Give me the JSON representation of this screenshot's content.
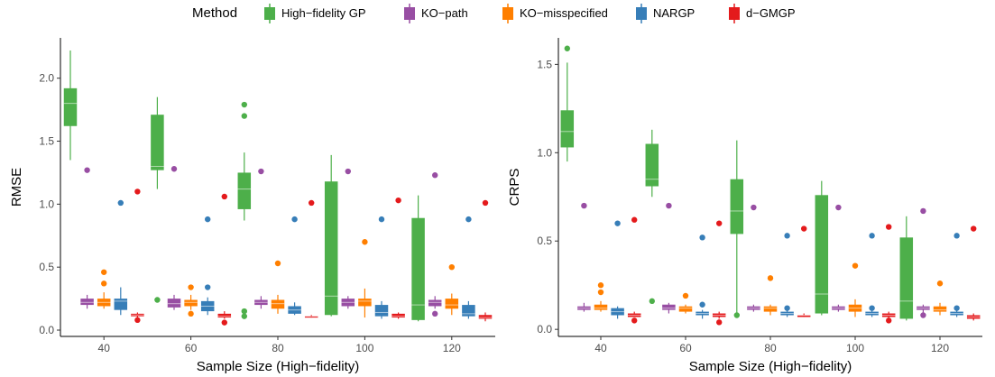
{
  "legend": {
    "title": "Method",
    "items": [
      {
        "label": "High−fidelity GP",
        "color": "#4DAF4A"
      },
      {
        "label": "KO−path",
        "color": "#984EA3"
      },
      {
        "label": "KO−misspecified",
        "color": "#FF7F00"
      },
      {
        "label": "NARGP",
        "color": "#377EB8"
      },
      {
        "label": "d−GMGP",
        "color": "#E41A1C"
      }
    ]
  },
  "chart_data": [
    {
      "type": "box",
      "xlabel": "Sample Size (High−fidelity)",
      "ylabel": "RMSE",
      "categories": [
        "40",
        "60",
        "80",
        "100",
        "120"
      ],
      "yticks": [
        "0.0",
        "0.5",
        "1.0",
        "1.5",
        "2.0"
      ],
      "ylim": [
        -0.05,
        2.32
      ],
      "grid": false,
      "series": [
        {
          "name": "High−fidelity GP",
          "color": "#4DAF4A",
          "boxes": [
            {
              "min": 1.35,
              "q1": 1.62,
              "median": 1.8,
              "q3": 1.92,
              "max": 2.22,
              "outliers": []
            },
            {
              "min": 1.12,
              "q1": 1.27,
              "median": 1.3,
              "q3": 1.71,
              "max": 1.85,
              "outliers": [
                0.24
              ]
            },
            {
              "min": 0.87,
              "q1": 0.96,
              "median": 1.12,
              "q3": 1.25,
              "max": 1.41,
              "outliers": [
                1.79,
                1.7,
                0.15,
                0.11
              ]
            },
            {
              "min": 0.11,
              "q1": 0.12,
              "median": 0.27,
              "q3": 1.18,
              "max": 1.39,
              "outliers": []
            },
            {
              "min": 0.07,
              "q1": 0.08,
              "median": 0.2,
              "q3": 0.89,
              "max": 1.07,
              "outliers": []
            }
          ]
        },
        {
          "name": "KO−path",
          "color": "#984EA3",
          "boxes": [
            {
              "min": 0.17,
              "q1": 0.2,
              "median": 0.22,
              "q3": 0.25,
              "max": 0.28,
              "outliers": [
                1.27
              ]
            },
            {
              "min": 0.16,
              "q1": 0.18,
              "median": 0.21,
              "q3": 0.25,
              "max": 0.28,
              "outliers": [
                1.28
              ]
            },
            {
              "min": 0.17,
              "q1": 0.2,
              "median": 0.22,
              "q3": 0.24,
              "max": 0.27,
              "outliers": [
                1.26
              ]
            },
            {
              "min": 0.17,
              "q1": 0.19,
              "median": 0.22,
              "q3": 0.25,
              "max": 0.27,
              "outliers": [
                1.26
              ]
            },
            {
              "min": 0.17,
              "q1": 0.19,
              "median": 0.22,
              "q3": 0.24,
              "max": 0.27,
              "outliers": [
                1.23,
                0.13
              ]
            }
          ]
        },
        {
          "name": "KO−misspecified",
          "color": "#FF7F00",
          "boxes": [
            {
              "min": 0.17,
              "q1": 0.19,
              "median": 0.22,
              "q3": 0.25,
              "max": 0.3,
              "outliers": [
                0.46,
                0.37
              ]
            },
            {
              "min": 0.16,
              "q1": 0.19,
              "median": 0.22,
              "q3": 0.24,
              "max": 0.28,
              "outliers": [
                0.34,
                0.13
              ]
            },
            {
              "min": 0.13,
              "q1": 0.17,
              "median": 0.21,
              "q3": 0.24,
              "max": 0.28,
              "outliers": [
                0.53
              ]
            },
            {
              "min": 0.1,
              "q1": 0.19,
              "median": 0.23,
              "q3": 0.25,
              "max": 0.33,
              "outliers": [
                0.7
              ]
            },
            {
              "min": 0.12,
              "q1": 0.17,
              "median": 0.2,
              "q3": 0.25,
              "max": 0.29,
              "outliers": [
                0.5
              ]
            }
          ]
        },
        {
          "name": "NARGP",
          "color": "#377EB8",
          "boxes": [
            {
              "min": 0.12,
              "q1": 0.16,
              "median": 0.23,
              "q3": 0.25,
              "max": 0.34,
              "outliers": [
                1.01
              ]
            },
            {
              "min": 0.12,
              "q1": 0.15,
              "median": 0.19,
              "q3": 0.23,
              "max": 0.26,
              "outliers": [
                0.88,
                0.34
              ]
            },
            {
              "min": 0.12,
              "q1": 0.13,
              "median": 0.16,
              "q3": 0.19,
              "max": 0.22,
              "outliers": [
                0.88
              ]
            },
            {
              "min": 0.09,
              "q1": 0.11,
              "median": 0.14,
              "q3": 0.2,
              "max": 0.23,
              "outliers": [
                0.88
              ]
            },
            {
              "min": 0.09,
              "q1": 0.11,
              "median": 0.13,
              "q3": 0.2,
              "max": 0.23,
              "outliers": [
                0.88
              ]
            }
          ]
        },
        {
          "name": "d−GMGP",
          "color": "#E41A1C",
          "boxes": [
            {
              "min": 0.1,
              "q1": 0.11,
              "median": 0.12,
              "q3": 0.13,
              "max": 0.14,
              "outliers": [
                1.1,
                0.08
              ]
            },
            {
              "min": 0.09,
              "q1": 0.1,
              "median": 0.11,
              "q3": 0.13,
              "max": 0.15,
              "outliers": [
                1.06,
                0.06
              ]
            },
            {
              "min": 0.1,
              "q1": 0.1,
              "median": 0.11,
              "q3": 0.11,
              "max": 0.12,
              "outliers": [
                1.01
              ]
            },
            {
              "min": 0.09,
              "q1": 0.1,
              "median": 0.11,
              "q3": 0.13,
              "max": 0.14,
              "outliers": [
                1.03
              ]
            },
            {
              "min": 0.07,
              "q1": 0.09,
              "median": 0.1,
              "q3": 0.12,
              "max": 0.14,
              "outliers": [
                1.01
              ]
            }
          ]
        }
      ]
    },
    {
      "type": "box",
      "xlabel": "Sample Size (High−fidelity)",
      "ylabel": "CRPS",
      "categories": [
        "40",
        "60",
        "80",
        "100",
        "120"
      ],
      "yticks": [
        "0.0",
        "0.5",
        "1.0",
        "1.5"
      ],
      "ylim": [
        -0.04,
        1.65
      ],
      "grid": false,
      "series": [
        {
          "name": "High−fidelity GP",
          "color": "#4DAF4A",
          "boxes": [
            {
              "min": 0.95,
              "q1": 1.03,
              "median": 1.12,
              "q3": 1.24,
              "max": 1.51,
              "outliers": [
                1.59
              ]
            },
            {
              "min": 0.75,
              "q1": 0.81,
              "median": 0.85,
              "q3": 1.05,
              "max": 1.13,
              "outliers": [
                0.16
              ]
            },
            {
              "min": 0.08,
              "q1": 0.54,
              "median": 0.67,
              "q3": 0.85,
              "max": 1.07,
              "outliers": [
                0.08
              ]
            },
            {
              "min": 0.08,
              "q1": 0.09,
              "median": 0.2,
              "q3": 0.76,
              "max": 0.84,
              "outliers": []
            },
            {
              "min": 0.05,
              "q1": 0.06,
              "median": 0.16,
              "q3": 0.52,
              "max": 0.64,
              "outliers": []
            }
          ]
        },
        {
          "name": "KO−path",
          "color": "#984EA3",
          "boxes": [
            {
              "min": 0.1,
              "q1": 0.11,
              "median": 0.12,
              "q3": 0.13,
              "max": 0.15,
              "outliers": [
                0.7
              ]
            },
            {
              "min": 0.09,
              "q1": 0.11,
              "median": 0.12,
              "q3": 0.14,
              "max": 0.15,
              "outliers": [
                0.7
              ]
            },
            {
              "min": 0.1,
              "q1": 0.11,
              "median": 0.12,
              "q3": 0.13,
              "max": 0.14,
              "outliers": [
                0.69
              ]
            },
            {
              "min": 0.1,
              "q1": 0.11,
              "median": 0.12,
              "q3": 0.13,
              "max": 0.14,
              "outliers": [
                0.69
              ]
            },
            {
              "min": 0.09,
              "q1": 0.11,
              "median": 0.12,
              "q3": 0.13,
              "max": 0.14,
              "outliers": [
                0.67,
                0.08
              ]
            }
          ]
        },
        {
          "name": "KO−misspecified",
          "color": "#FF7F00",
          "boxes": [
            {
              "min": 0.1,
              "q1": 0.11,
              "median": 0.12,
              "q3": 0.14,
              "max": 0.16,
              "outliers": [
                0.25,
                0.21
              ]
            },
            {
              "min": 0.09,
              "q1": 0.1,
              "median": 0.12,
              "q3": 0.13,
              "max": 0.14,
              "outliers": [
                0.19
              ]
            },
            {
              "min": 0.08,
              "q1": 0.1,
              "median": 0.12,
              "q3": 0.13,
              "max": 0.14,
              "outliers": [
                0.29
              ]
            },
            {
              "min": 0.07,
              "q1": 0.1,
              "median": 0.12,
              "q3": 0.14,
              "max": 0.17,
              "outliers": [
                0.36
              ]
            },
            {
              "min": 0.08,
              "q1": 0.1,
              "median": 0.11,
              "q3": 0.13,
              "max": 0.15,
              "outliers": [
                0.26
              ]
            }
          ]
        },
        {
          "name": "NARGP",
          "color": "#377EB8",
          "boxes": [
            {
              "min": 0.06,
              "q1": 0.08,
              "median": 0.1,
              "q3": 0.12,
              "max": 0.13,
              "outliers": [
                0.6
              ]
            },
            {
              "min": 0.06,
              "q1": 0.08,
              "median": 0.09,
              "q3": 0.1,
              "max": 0.11,
              "outliers": [
                0.52,
                0.14
              ]
            },
            {
              "min": 0.07,
              "q1": 0.08,
              "median": 0.09,
              "q3": 0.1,
              "max": 0.11,
              "outliers": [
                0.53,
                0.12
              ]
            },
            {
              "min": 0.07,
              "q1": 0.08,
              "median": 0.09,
              "q3": 0.1,
              "max": 0.11,
              "outliers": [
                0.53,
                0.12
              ]
            },
            {
              "min": 0.07,
              "q1": 0.08,
              "median": 0.09,
              "q3": 0.1,
              "max": 0.11,
              "outliers": [
                0.53,
                0.12
              ]
            }
          ]
        },
        {
          "name": "d−GMGP",
          "color": "#E41A1C",
          "boxes": [
            {
              "min": 0.07,
              "q1": 0.07,
              "median": 0.08,
              "q3": 0.09,
              "max": 0.1,
              "outliers": [
                0.62,
                0.05
              ]
            },
            {
              "min": 0.06,
              "q1": 0.07,
              "median": 0.08,
              "q3": 0.09,
              "max": 0.1,
              "outliers": [
                0.6,
                0.04
              ]
            },
            {
              "min": 0.07,
              "q1": 0.07,
              "median": 0.08,
              "q3": 0.08,
              "max": 0.09,
              "outliers": [
                0.57
              ]
            },
            {
              "min": 0.06,
              "q1": 0.07,
              "median": 0.08,
              "q3": 0.09,
              "max": 0.1,
              "outliers": [
                0.58,
                0.05
              ]
            },
            {
              "min": 0.05,
              "q1": 0.06,
              "median": 0.07,
              "q3": 0.08,
              "max": 0.09,
              "outliers": [
                0.57
              ]
            }
          ]
        }
      ]
    }
  ]
}
